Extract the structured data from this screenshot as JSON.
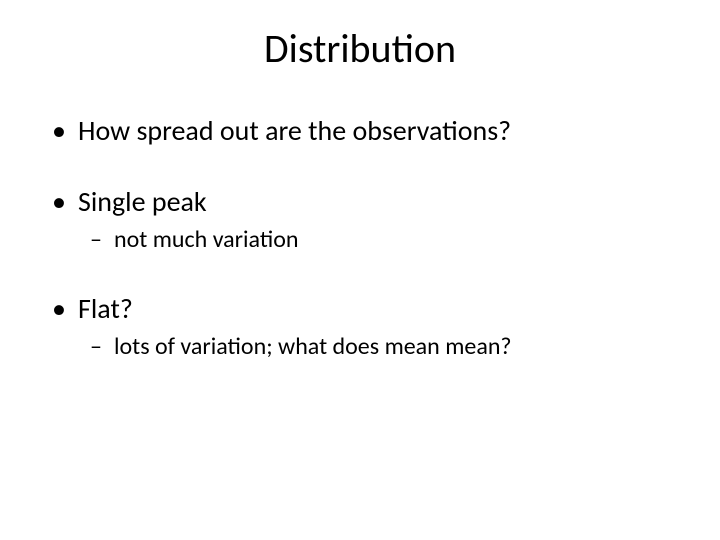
{
  "slide": {
    "title": "Distribution",
    "items": [
      {
        "level": 1,
        "text": "How spread out are the observations?"
      },
      {
        "level": 1,
        "text": "Single peak"
      },
      {
        "level": 2,
        "text": "not much variation"
      },
      {
        "level": 1,
        "text": "Flat?"
      },
      {
        "level": 2,
        "text": "lots of variation; what does mean mean?"
      }
    ],
    "background_color": "#ffffff",
    "text_color": "#000000",
    "title_fontsize": 40,
    "l1_fontsize": 28,
    "l2_fontsize": 24,
    "font_family": "Calibri"
  }
}
